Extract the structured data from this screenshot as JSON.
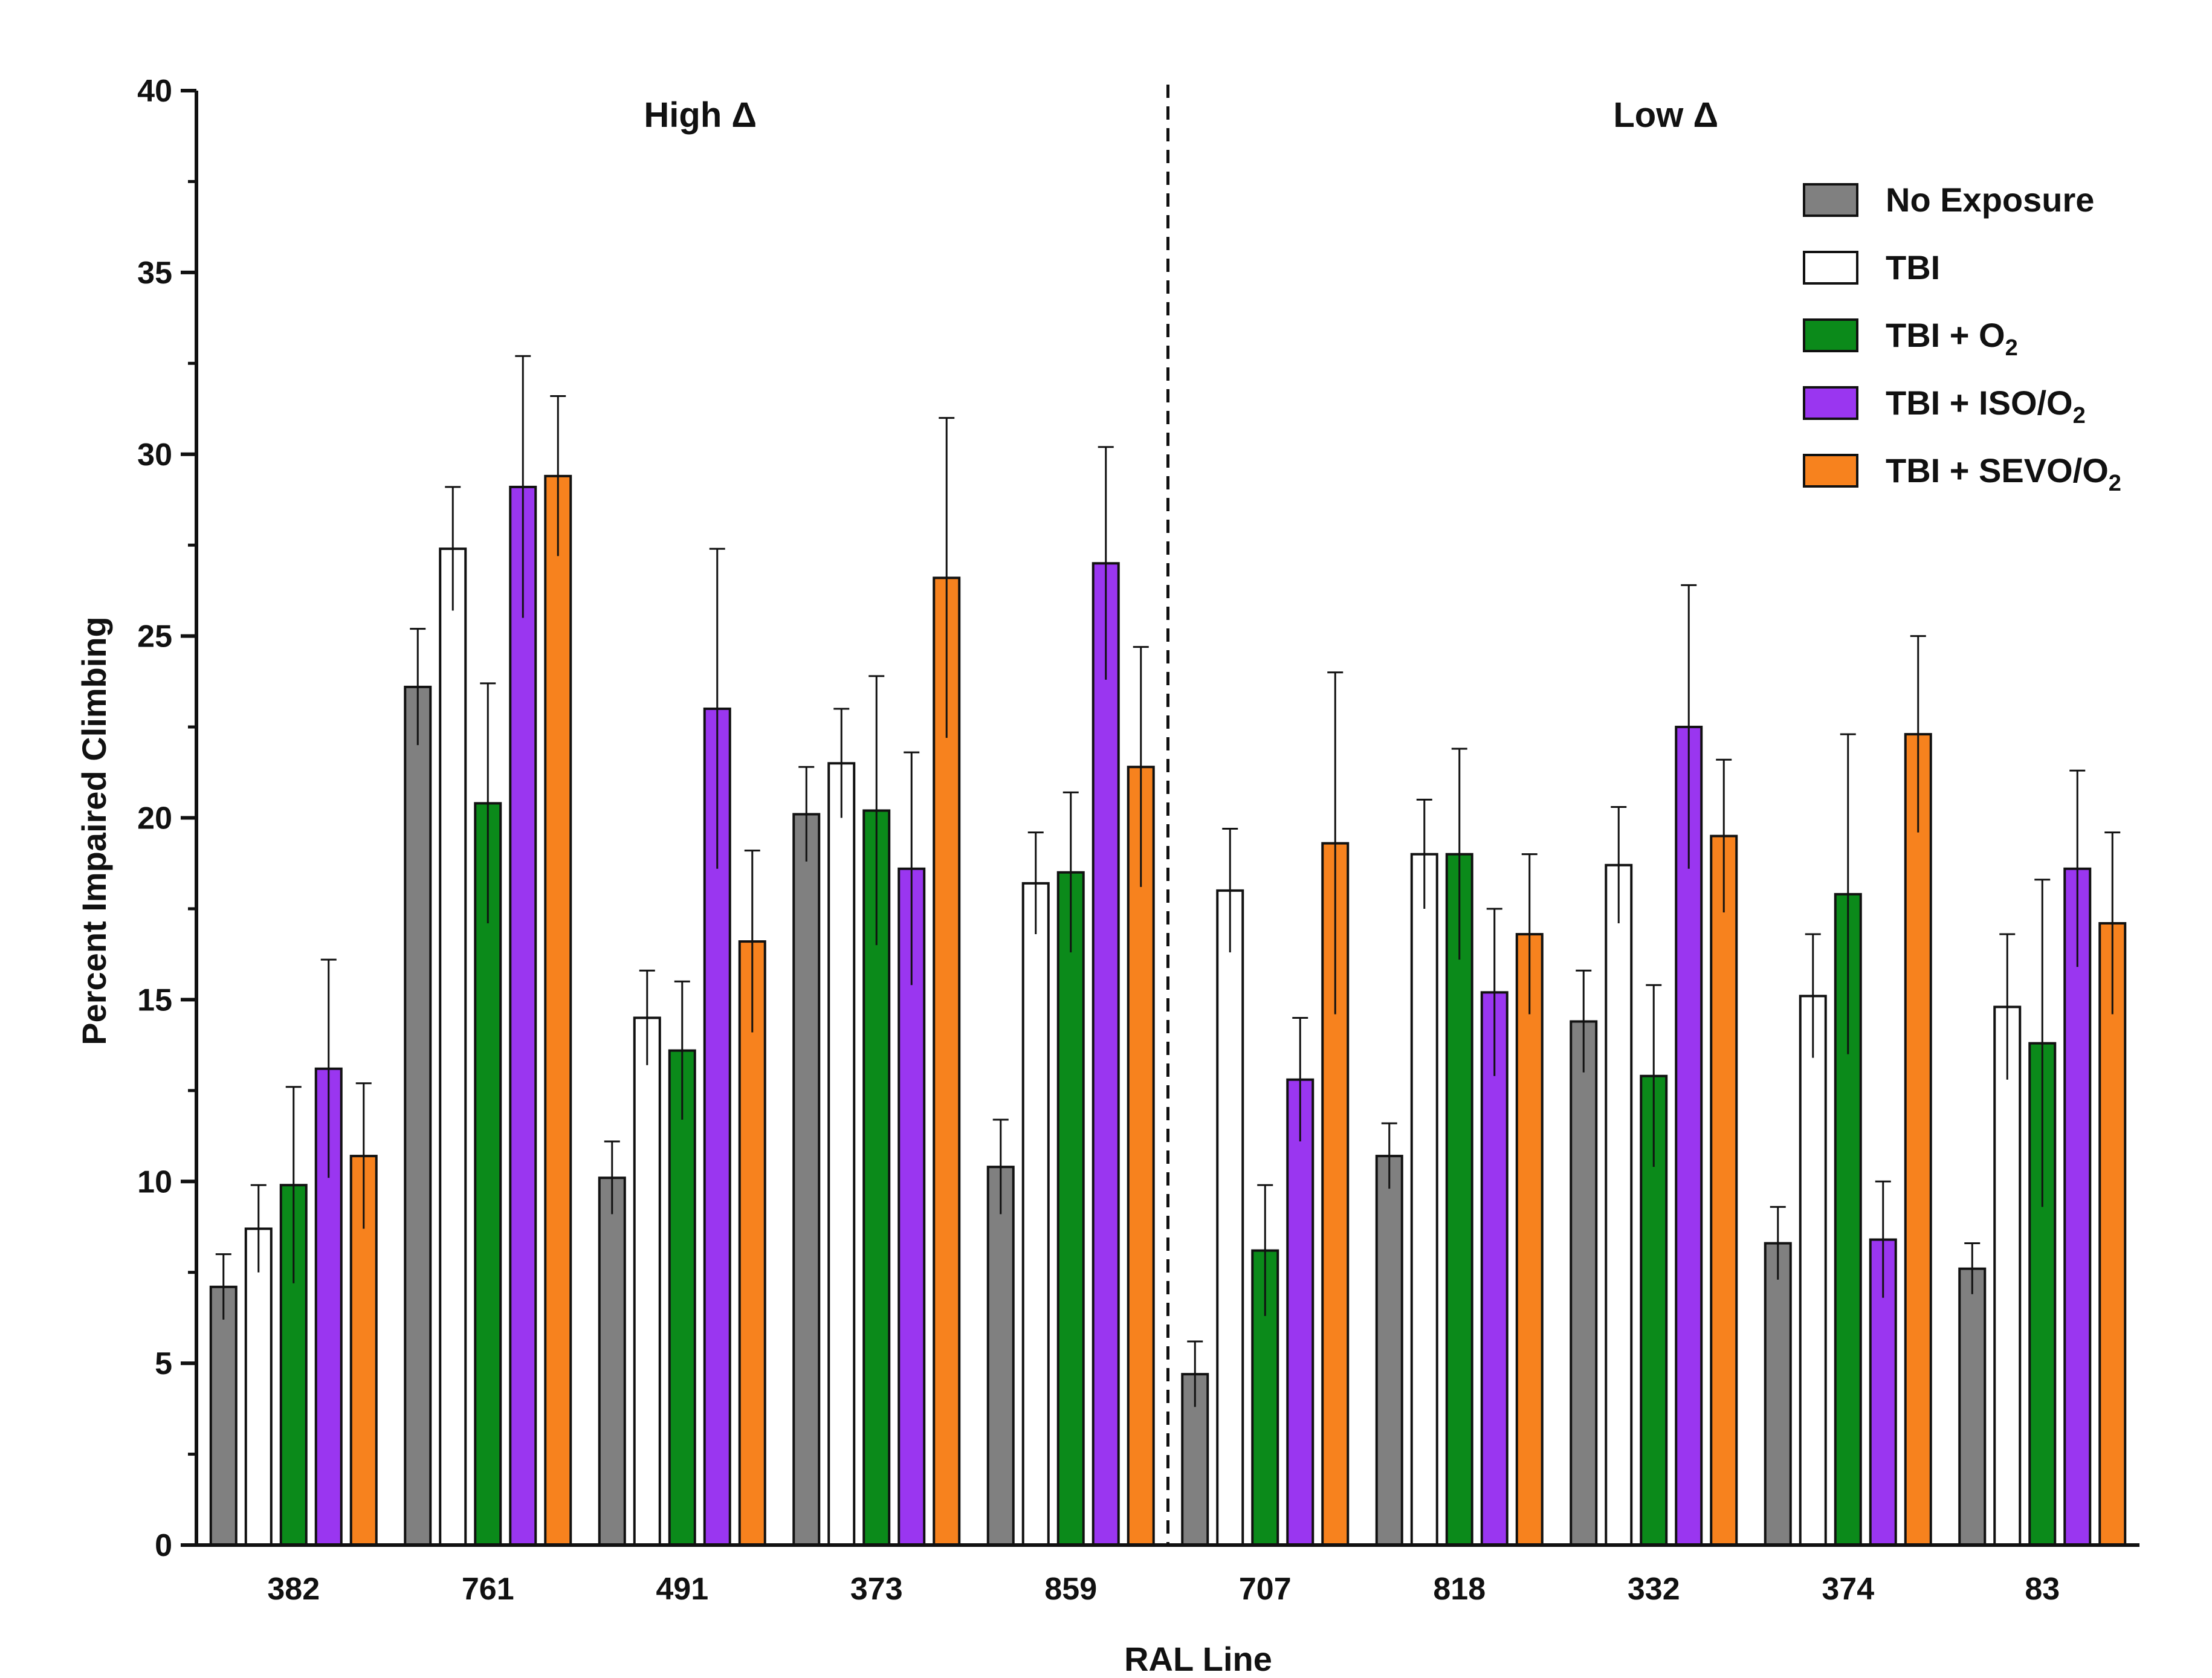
{
  "chart_data": {
    "type": "bar",
    "ylabel": "Percent Impaired Climbing",
    "xlabel": "RAL Line",
    "ylim": [
      0,
      40
    ],
    "yticks": [
      "0",
      "5",
      "10",
      "15",
      "20",
      "25",
      "30",
      "35",
      "40"
    ],
    "categories": [
      "382",
      "761",
      "491",
      "373",
      "859",
      "707",
      "818",
      "332",
      "374",
      "83"
    ],
    "groups": [
      {
        "label": "High Δ",
        "categories": [
          "382",
          "761",
          "491",
          "373",
          "859"
        ]
      },
      {
        "label": "Low Δ",
        "categories": [
          "707",
          "818",
          "332",
          "374",
          "83"
        ]
      }
    ],
    "legend_position": "top-right",
    "series": [
      {
        "name": "No Exposure",
        "name_main": "No Exposure",
        "name_sub": "",
        "name_tail": "",
        "color": "#808080",
        "values": [
          7.1,
          23.6,
          10.1,
          20.1,
          10.4,
          4.7,
          10.7,
          14.4,
          8.3,
          7.6
        ],
        "errors": [
          0.9,
          1.6,
          1.0,
          1.3,
          1.3,
          0.9,
          0.9,
          1.4,
          1.0,
          0.7
        ]
      },
      {
        "name": "TBI",
        "name_main": "TBI",
        "name_sub": "",
        "name_tail": "",
        "color": "#ffffff",
        "values": [
          8.7,
          27.4,
          14.5,
          21.5,
          18.2,
          18.0,
          19.0,
          18.7,
          15.1,
          14.8
        ],
        "errors": [
          1.2,
          1.7,
          1.3,
          1.5,
          1.4,
          1.7,
          1.5,
          1.6,
          1.7,
          2.0
        ]
      },
      {
        "name": "TBI + O2",
        "name_main": "TBI + O",
        "name_sub": "2",
        "name_tail": "",
        "color": "#0b8a1a",
        "values": [
          9.9,
          20.4,
          13.6,
          20.2,
          18.5,
          8.1,
          19.0,
          12.9,
          17.9,
          13.8
        ],
        "errors": [
          2.7,
          3.3,
          1.9,
          3.7,
          2.2,
          1.8,
          2.9,
          2.5,
          4.4,
          4.5
        ]
      },
      {
        "name": "TBI + ISO/O2",
        "name_main": "TBI + ISO/O",
        "name_sub": "2",
        "name_tail": "",
        "color": "#9a36f0",
        "values": [
          13.1,
          29.1,
          23.0,
          18.6,
          27.0,
          12.8,
          15.2,
          22.5,
          8.4,
          18.6
        ],
        "errors": [
          3.0,
          3.6,
          4.4,
          3.2,
          3.2,
          1.7,
          2.3,
          3.9,
          1.6,
          2.7
        ]
      },
      {
        "name": "TBI + SEVO/O2",
        "name_main": "TBI + SEVO/O",
        "name_sub": "2",
        "name_tail": "",
        "color": "#f7821e",
        "values": [
          10.7,
          29.4,
          16.6,
          26.6,
          21.4,
          19.3,
          16.8,
          19.5,
          22.3,
          17.1
        ],
        "errors": [
          2.0,
          2.2,
          2.5,
          4.4,
          3.3,
          4.7,
          2.2,
          2.1,
          2.7,
          2.5
        ]
      }
    ]
  }
}
